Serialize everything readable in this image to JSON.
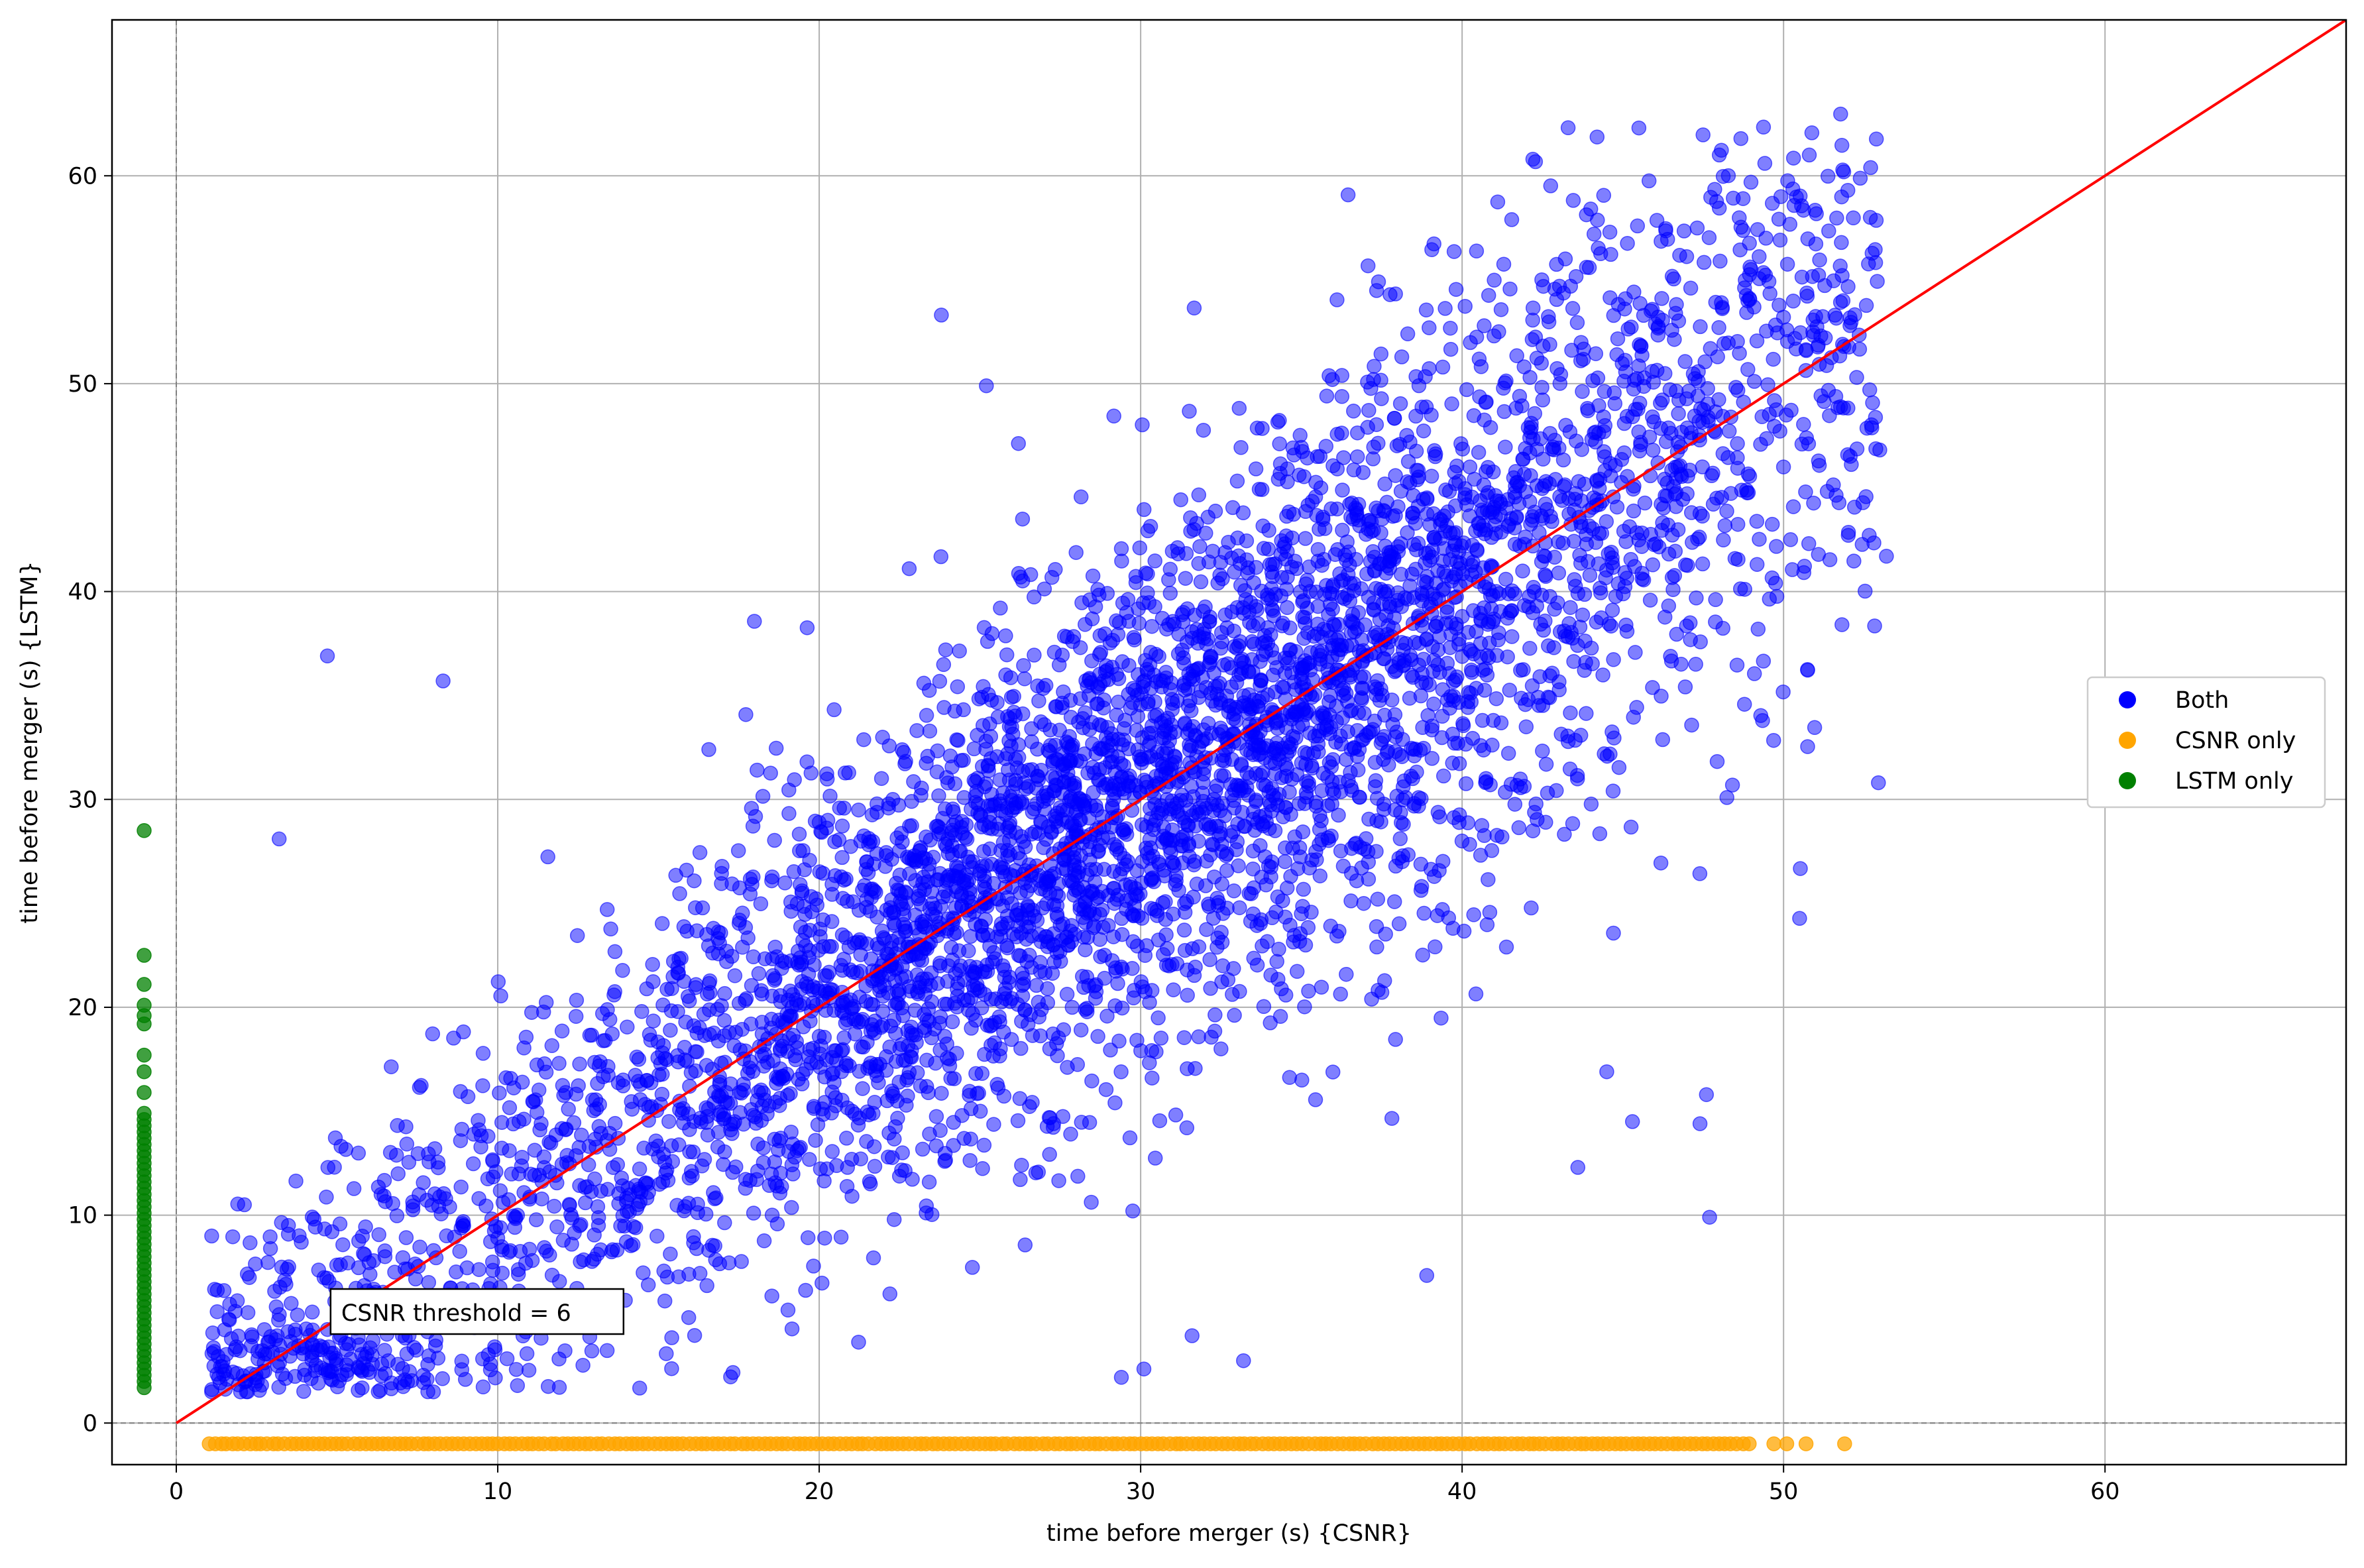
{
  "chart_data": {
    "type": "scatter",
    "title": "",
    "xlabel": "time before merger (s) {CSNR}",
    "ylabel": "time before merger (s) {LSTM}",
    "xlim": [
      -2,
      67.5
    ],
    "ylim": [
      -2,
      67.5
    ],
    "xticks": [
      0,
      10,
      20,
      30,
      40,
      50,
      60
    ],
    "yticks": [
      0,
      10,
      20,
      30,
      40,
      50,
      60
    ],
    "grid": true,
    "legend_position": "center-right",
    "reference_line": {
      "name": "y = x",
      "color": "#ff0000",
      "from": [
        0,
        0
      ],
      "to": [
        67.5,
        67.5
      ]
    },
    "zero_lines": {
      "x": 0,
      "y": 0,
      "style": "dashed",
      "color": "#808080"
    },
    "annotation": {
      "text": "CSNR threshold = 6",
      "x": 4.8,
      "y": 5.3
    },
    "series": [
      {
        "name": "Both",
        "color": "#0000ff",
        "alpha": 0.5,
        "n_points": 5000,
        "distribution": {
          "x_range": [
            1,
            53
          ],
          "trend": "y ≈ x",
          "spread_sd": 6
        },
        "points": [
          [
            4.7,
            36.9
          ],
          [
            8.3,
            35.7
          ],
          [
            3.2,
            28.1
          ],
          [
            23.8,
            53.3
          ],
          [
            25.2,
            49.9
          ],
          [
            22.8,
            41.1
          ],
          [
            42.2,
            60.8
          ],
          [
            45.5,
            62.3
          ],
          [
            44.0,
            58.4
          ],
          [
            48.0,
            61.0
          ],
          [
            50.8,
            61.0
          ],
          [
            52.7,
            58.0
          ],
          [
            52.0,
            59.3
          ],
          [
            37.4,
            54.9
          ],
          [
            53.2,
            41.7
          ],
          [
            47.7,
            9.9
          ],
          [
            47.6,
            15.8
          ],
          [
            47.4,
            14.4
          ],
          [
            44.5,
            16.9
          ],
          [
            45.3,
            14.5
          ],
          [
            43.6,
            12.3
          ],
          [
            38.9,
            7.1
          ],
          [
            31.6,
            4.2
          ],
          [
            33.2,
            3.0
          ],
          [
            29.4,
            2.2
          ],
          [
            30.1,
            2.6
          ],
          [
            1.1,
            9.0
          ],
          [
            1.3,
            3.2
          ],
          [
            2.0,
            1.5
          ],
          [
            8.0,
            1.5
          ],
          [
            46.1,
            53.2
          ],
          [
            42.6,
            28.9
          ],
          [
            35.0,
            24.5
          ],
          [
            15.0,
            12.8
          ],
          [
            20.0,
            18.6
          ],
          [
            10.0,
            8.9
          ]
        ]
      },
      {
        "name": "CSNR only",
        "color": "#ffa500",
        "alpha": 0.75,
        "y": -1,
        "x_range": [
          1,
          51.9
        ],
        "points_x": [
          49.7,
          50.1,
          50.7,
          51.9
        ]
      },
      {
        "name": "LSTM only",
        "color": "#008000",
        "alpha": 0.75,
        "x": -1,
        "y_range": [
          1.7,
          28.5
        ],
        "points_y": [
          28.5,
          22.5,
          21.1,
          20.1,
          19.6,
          19.2,
          17.7,
          16.9,
          15.9
        ]
      }
    ]
  }
}
